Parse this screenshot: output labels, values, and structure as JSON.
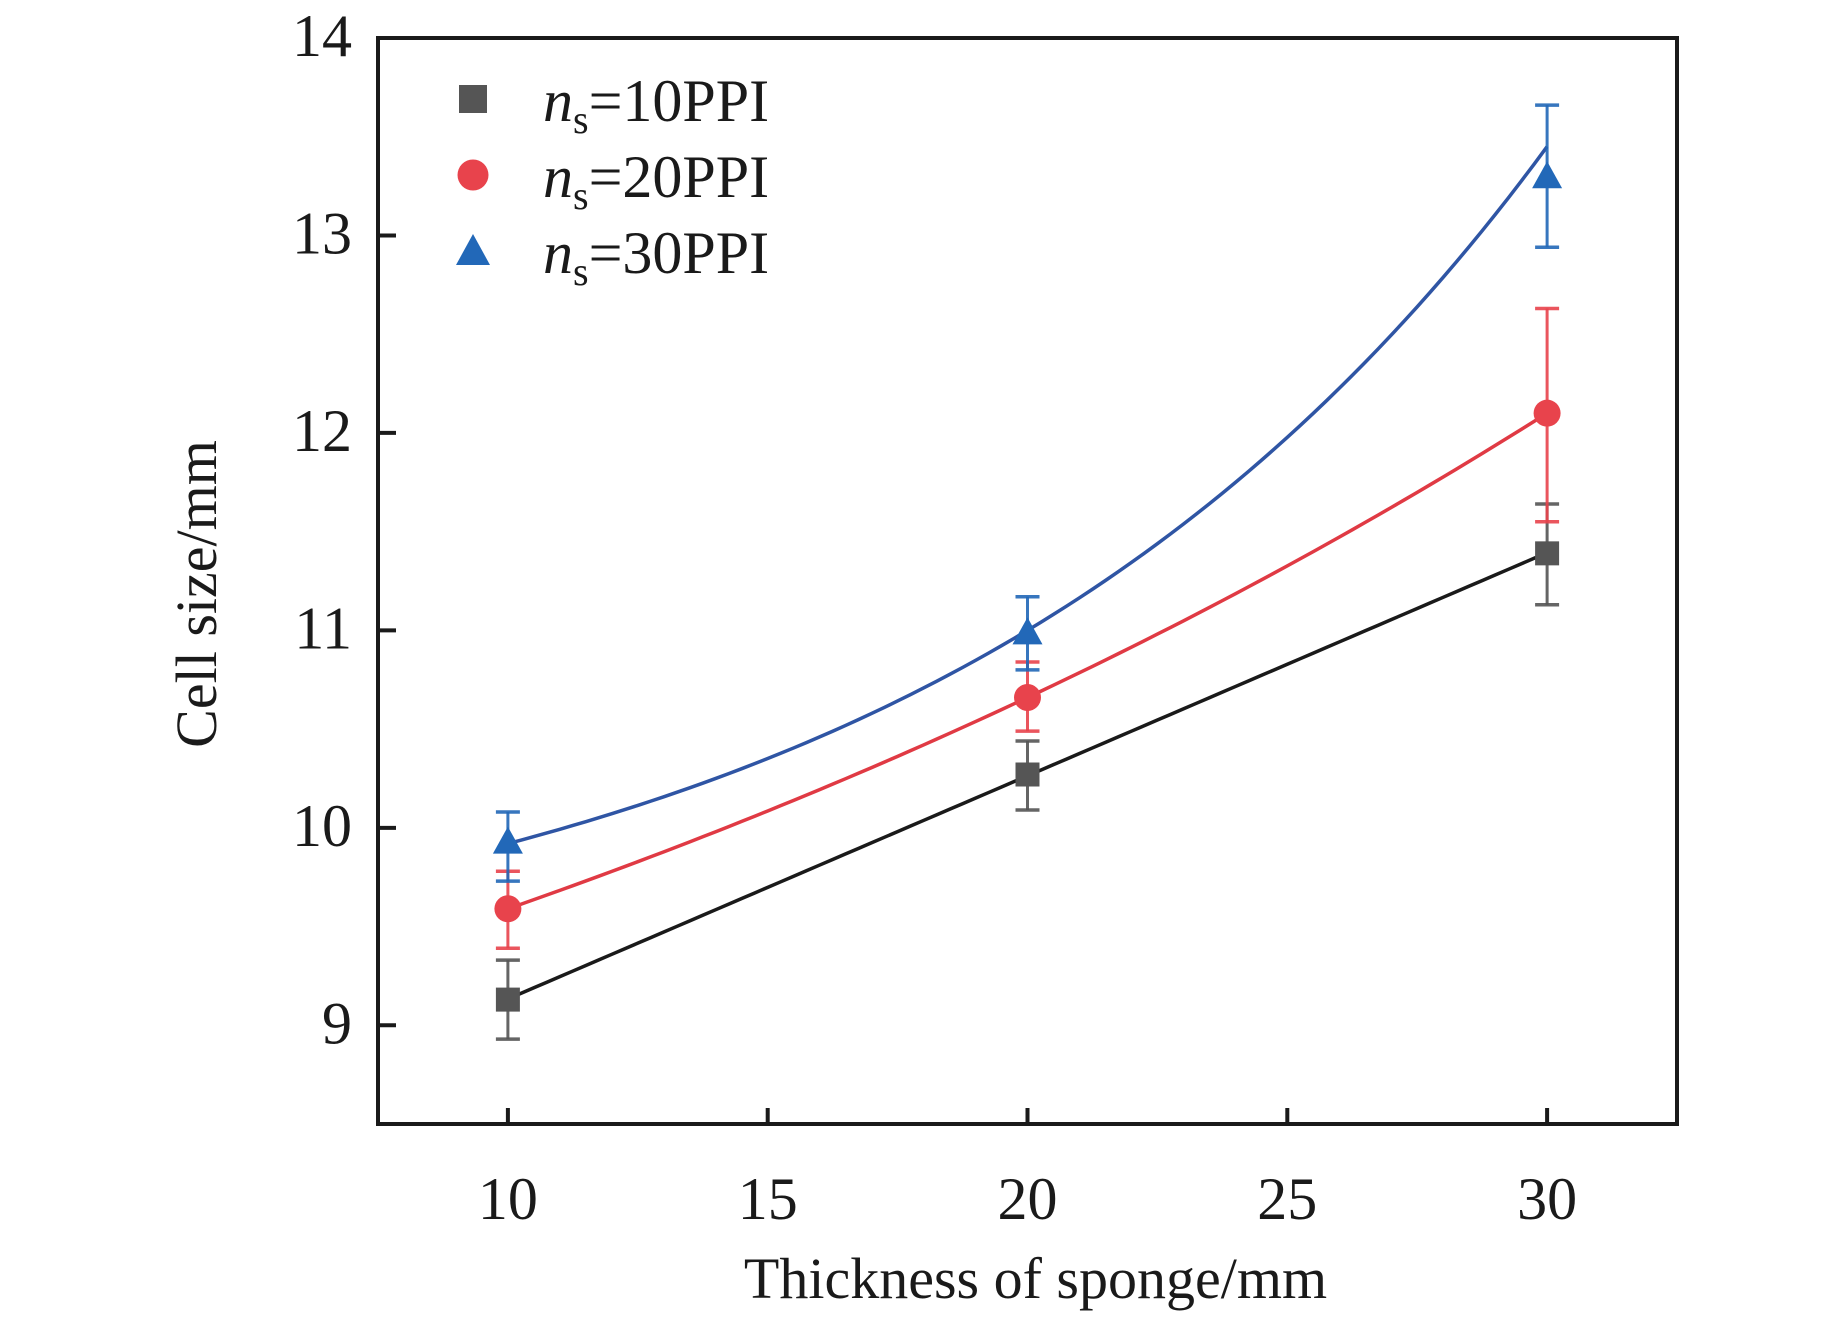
{
  "chart_data": {
    "type": "line",
    "title": "",
    "xlabel": "Thickness of sponge/mm",
    "ylabel": "Cell size/mm",
    "xlim": [
      7.5,
      32.5
    ],
    "ylim": [
      8.5,
      14
    ],
    "xticks": [
      10,
      15,
      20,
      25,
      30
    ],
    "xtick_labels": [
      "10",
      "15",
      "20",
      "25",
      "30"
    ],
    "yticks": [
      9,
      10,
      11,
      12,
      13,
      14
    ],
    "ytick_labels": [
      "9",
      "10",
      "11",
      "12",
      "13",
      "14"
    ],
    "grid": false,
    "legend_position": "top-left",
    "x": [
      10,
      20,
      30
    ],
    "series": [
      {
        "name": "n_s=10PPI",
        "legend_var": "n",
        "legend_sub": "s",
        "legend_value": "=10PPI",
        "marker": "square",
        "marker_color": "#555555",
        "line_color": "#1a1a1a",
        "fit": "linear",
        "values": [
          9.13,
          10.27,
          11.39
        ],
        "error_upper": [
          9.33,
          10.44,
          11.64
        ],
        "error_lower": [
          8.93,
          10.09,
          11.13
        ],
        "fit_values": [
          9.13,
          10.27,
          11.39
        ]
      },
      {
        "name": "n_s=20PPI",
        "legend_var": "n",
        "legend_sub": "s",
        "legend_value": "=20PPI",
        "marker": "circle",
        "marker_color": "#e8434c",
        "line_color": "#e03a44",
        "fit": "exponential",
        "values": [
          9.59,
          10.66,
          12.1
        ],
        "error_upper": [
          9.78,
          10.84,
          12.63
        ],
        "error_lower": [
          9.39,
          10.49,
          11.55
        ],
        "fit_values": [
          9.59,
          10.66,
          12.1
        ]
      },
      {
        "name": "n_s=30PPI",
        "legend_var": "n",
        "legend_sub": "s",
        "legend_value": "=30PPI",
        "marker": "triangle",
        "marker_color": "#2268b8",
        "line_color": "#2f55a4",
        "fit": "exponential",
        "values": [
          9.93,
          10.99,
          13.3
        ],
        "error_upper": [
          10.08,
          11.17,
          13.66
        ],
        "error_lower": [
          9.73,
          10.8,
          12.94
        ],
        "fit_values": [
          9.92,
          11.0,
          13.45
        ]
      }
    ]
  }
}
